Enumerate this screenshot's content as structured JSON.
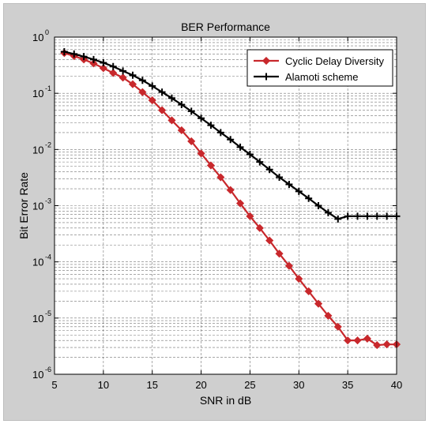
{
  "chart_data": {
    "type": "line",
    "title": "BER Performance",
    "xlabel": "SNR in dB",
    "ylabel": "Bit Error Rate",
    "xlim": [
      5,
      40
    ],
    "ylim": [
      1e-06,
      1
    ],
    "yscale": "log",
    "grid": "on (major and minor, dashed)",
    "x_ticks": [
      "5",
      "10",
      "15",
      "20",
      "25",
      "30",
      "35",
      "40"
    ],
    "y_tick_base": "10",
    "y_tick_exponents": [
      "0",
      "-1",
      "-2",
      "-3",
      "-4",
      "-5",
      "-6"
    ],
    "legend_position": "top-right",
    "x": [
      6,
      7,
      8,
      9,
      10,
      11,
      12,
      13,
      14,
      15,
      16,
      17,
      18,
      19,
      20,
      21,
      22,
      23,
      24,
      25,
      26,
      27,
      28,
      29,
      30,
      31,
      32,
      33,
      34,
      35,
      36,
      37,
      38,
      39,
      40
    ],
    "series": [
      {
        "name": "Cyclic Delay Diversity",
        "color": "#c8282c",
        "marker": "diamond",
        "values": [
          0.52,
          0.46,
          0.4,
          0.34,
          0.28,
          0.23,
          0.19,
          0.145,
          0.105,
          0.075,
          0.05,
          0.033,
          0.022,
          0.014,
          0.0085,
          0.0052,
          0.0032,
          0.0019,
          0.0011,
          0.00065,
          0.0004,
          0.00024,
          0.00014,
          8.5e-05,
          5e-05,
          3e-05,
          1.8e-05,
          1.1e-05,
          7e-06,
          4e-06,
          4e-06,
          4.3e-06,
          3.3e-06,
          3.4e-06,
          3.4e-06
        ]
      },
      {
        "name": "Alamoti scheme",
        "color": "#000000",
        "marker": "plus",
        "values": [
          0.55,
          0.5,
          0.45,
          0.4,
          0.35,
          0.3,
          0.25,
          0.21,
          0.17,
          0.135,
          0.105,
          0.082,
          0.063,
          0.048,
          0.036,
          0.027,
          0.02,
          0.015,
          0.011,
          0.0082,
          0.006,
          0.0044,
          0.0032,
          0.0024,
          0.0018,
          0.00135,
          0.001,
          0.00075,
          0.00058,
          0.00065,
          0.00065,
          0.00065,
          0.00065,
          0.00065,
          0.00065
        ]
      }
    ]
  }
}
